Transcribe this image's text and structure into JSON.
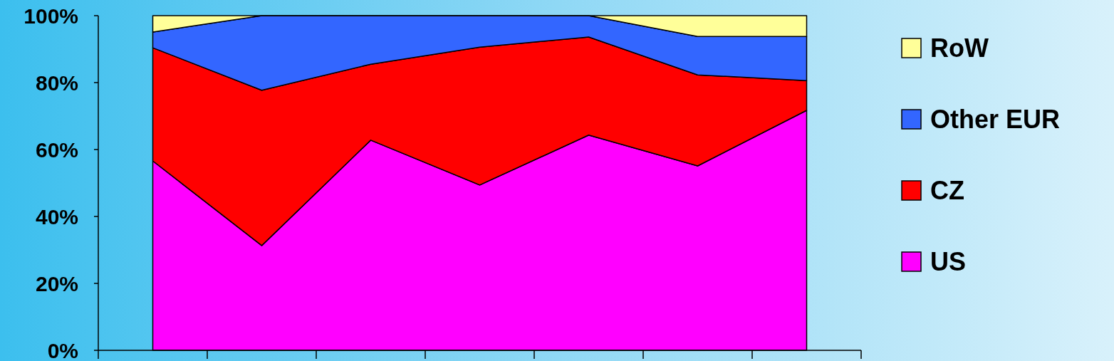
{
  "chart_data": {
    "type": "area",
    "stacked": true,
    "categories": [
      null,
      null,
      null,
      null,
      null,
      null,
      null
    ],
    "series": [
      {
        "name": "US",
        "color": "#ff00ff",
        "values": [
          56.6,
          31.3,
          62.8,
          49.4,
          64.3,
          55.1,
          71.7
        ]
      },
      {
        "name": "CZ",
        "color": "#ff0000",
        "values": [
          33.8,
          46.4,
          22.7,
          41.2,
          29.3,
          27.2,
          8.9
        ]
      },
      {
        "name": "Other EUR",
        "color": "#3366ff",
        "values": [
          4.7,
          22.3,
          14.5,
          9.4,
          6.4,
          11.5,
          13.2
        ]
      },
      {
        "name": "RoW",
        "color": "#ffff99",
        "values": [
          4.9,
          0,
          0,
          0,
          0,
          6.2,
          6.2
        ]
      }
    ],
    "ylim": [
      0,
      100
    ],
    "yticks": [
      {
        "value": 0,
        "label": "0%"
      },
      {
        "value": 20,
        "label": "20%"
      },
      {
        "value": 40,
        "label": "40%"
      },
      {
        "value": 60,
        "label": "60%"
      },
      {
        "value": 80,
        "label": "80%"
      },
      {
        "value": 100,
        "label": "100%"
      }
    ],
    "legend": "right",
    "grid": false
  }
}
